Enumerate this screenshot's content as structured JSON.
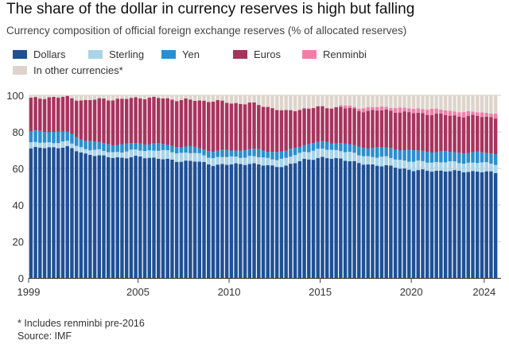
{
  "title": "The share of the dollar in currency reserves is high but falling",
  "subtitle": "Currency composition of official foreign exchange reserves (% of allocated reserves)",
  "footnote": "* Includes renminbi pre-2016",
  "source": "Source: IMF",
  "chart_data": {
    "type": "bar",
    "stacked": true,
    "ylim": [
      0,
      100
    ],
    "y_ticks": [
      0,
      20,
      40,
      60,
      80,
      100
    ],
    "x_ticks": [
      "1999",
      "2005",
      "2010",
      "2015",
      "2020",
      "2024"
    ],
    "x_start": 1999,
    "periods_per_year": 4,
    "n_periods": 103,
    "grid": true,
    "legend_position": "top-left",
    "colors": {
      "dollars": "#1f5096",
      "sterling": "#a9d3e8",
      "yen": "#2b8fcf",
      "euros": "#a8345d",
      "renminbi": "#f07fa8",
      "other": "#ddd4cb"
    },
    "series": [
      {
        "name": "Dollars",
        "key": "dollars",
        "anchors": [
          [
            1999,
            71
          ],
          [
            2000,
            71.5
          ],
          [
            2001,
            71.6
          ],
          [
            2002,
            68
          ],
          [
            2003,
            66.5
          ],
          [
            2004,
            65.8
          ],
          [
            2005,
            66.4
          ],
          [
            2006,
            65.5
          ],
          [
            2007,
            64.1
          ],
          [
            2008,
            64
          ],
          [
            2009,
            62
          ],
          [
            2010,
            62.2
          ],
          [
            2011,
            62.7
          ],
          [
            2012,
            61.5
          ],
          [
            2013,
            61.2
          ],
          [
            2014,
            65
          ],
          [
            2015,
            65.7
          ],
          [
            2016,
            65.4
          ],
          [
            2017,
            62.7
          ],
          [
            2018,
            61.8
          ],
          [
            2019,
            60.7
          ],
          [
            2020,
            58.9
          ],
          [
            2021,
            58.8
          ],
          [
            2022,
            58.5
          ],
          [
            2023,
            58.4
          ],
          [
            2024.75,
            57.8
          ]
        ]
      },
      {
        "name": "Sterling",
        "key": "sterling",
        "anchors": [
          [
            1999,
            2.8
          ],
          [
            2001,
            2.8
          ],
          [
            2003,
            2.8
          ],
          [
            2005,
            3.7
          ],
          [
            2007,
            4.8
          ],
          [
            2008,
            4.2
          ],
          [
            2010,
            3.9
          ],
          [
            2013,
            4
          ],
          [
            2015,
            4.7
          ],
          [
            2017,
            4.5
          ],
          [
            2019,
            4.6
          ],
          [
            2021,
            4.8
          ],
          [
            2023,
            4.8
          ],
          [
            2024.75,
            4.8
          ]
        ]
      },
      {
        "name": "Yen",
        "key": "yen",
        "anchors": [
          [
            1999,
            6.3
          ],
          [
            2000,
            6.1
          ],
          [
            2002,
            4.5
          ],
          [
            2004,
            4
          ],
          [
            2006,
            3.5
          ],
          [
            2008,
            3.2
          ],
          [
            2010,
            3.7
          ],
          [
            2012,
            4
          ],
          [
            2014,
            3.9
          ],
          [
            2016,
            4
          ],
          [
            2018,
            5
          ],
          [
            2020,
            6
          ],
          [
            2022,
            5.5
          ],
          [
            2024.75,
            5.6
          ]
        ]
      },
      {
        "name": "Euros",
        "key": "euros",
        "anchors": [
          [
            1999,
            18
          ],
          [
            2001,
            19.2
          ],
          [
            2003,
            24.5
          ],
          [
            2006,
            25.2
          ],
          [
            2008,
            25.8
          ],
          [
            2009,
            27.5
          ],
          [
            2010,
            26
          ],
          [
            2012,
            24.3
          ],
          [
            2014,
            19.6
          ],
          [
            2015,
            19.1
          ],
          [
            2017,
            20
          ],
          [
            2019,
            20.6
          ],
          [
            2021,
            20.6
          ],
          [
            2022,
            20
          ],
          [
            2024.75,
            19.8
          ]
        ]
      },
      {
        "name": "Renminbi",
        "key": "renminbi",
        "start": 2016,
        "anchors": [
          [
            2016,
            1.1
          ],
          [
            2018,
            1.9
          ],
          [
            2020,
            2.3
          ],
          [
            2021,
            2.8
          ],
          [
            2022,
            2.6
          ],
          [
            2023,
            2.3
          ],
          [
            2024.75,
            2.2
          ]
        ]
      },
      {
        "name": "In other currencies*",
        "key": "other",
        "note": "remainder to 100"
      }
    ]
  }
}
